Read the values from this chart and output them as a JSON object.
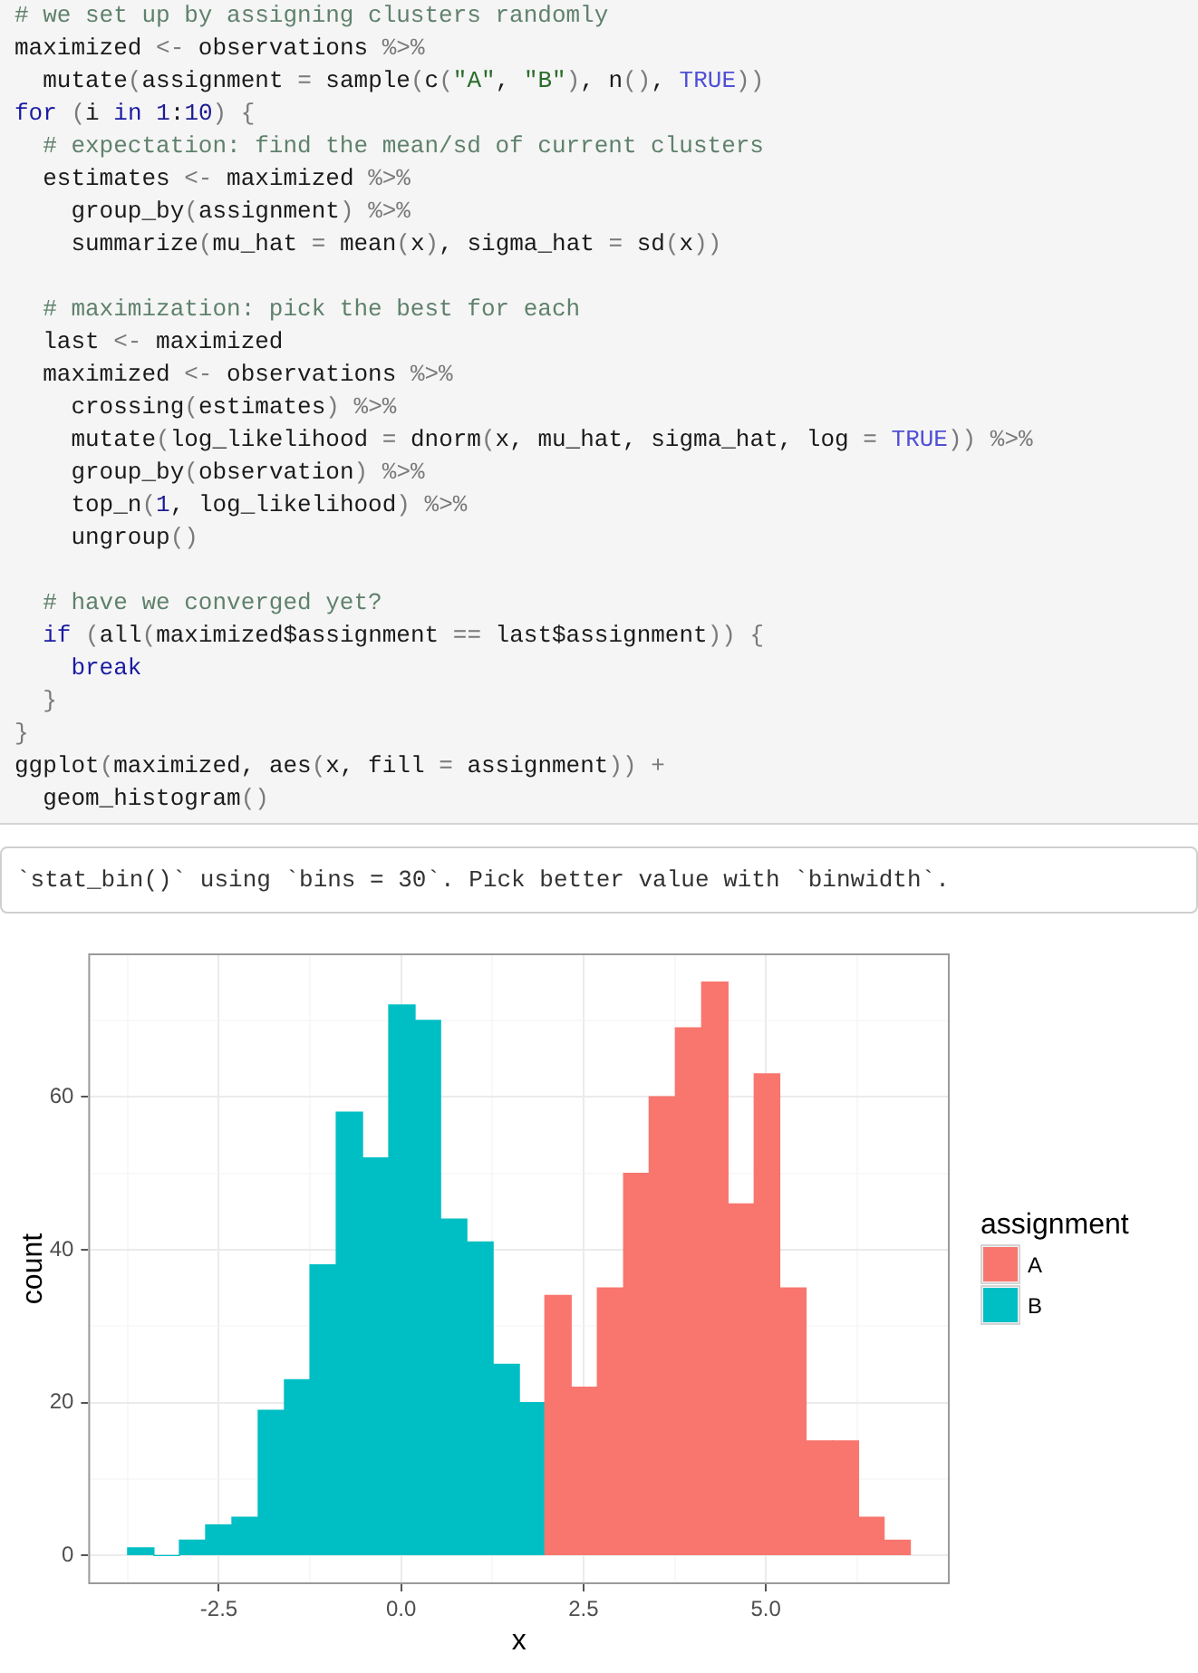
{
  "chart_data": {
    "type": "histogram",
    "xlabel": "x",
    "ylabel": "count",
    "legend_title": "assignment",
    "legend": "right",
    "grid": true,
    "annotations": [
      "# we set up by assigning clusters randomly\nmaximized <- observations %>%\n  mutate(assignment = sample(c(\"A\", \"B\"), n(), TRUE))\nfor (i in 1:10) {\n  # expectation: find the mean/sd of current clusters\n  estimates <- maximized %>%\n    group_by(assignment) %>%\n    summarize(mu_hat = mean(x), sigma_hat = sd(x))\n\n  # maximization: pick the best for each\n  last <- maximized\n  maximized <- observations %>%\n    crossing(estimates) %>%\n    mutate(log_likelihood = dnorm(x, mu_hat, sigma_hat, log = TRUE)) %>%\n    group_by(observation) %>%\n    top_n(1, log_likelihood) %>%\n    ungroup()\n\n  # have we converged yet?\n  if (all(maximized$assignment == last$assignment)) {\n    break\n  }\n}\nggplot(maximized, aes(x, fill = assignment)) +\n  geom_histogram()",
      "`stat_bin()` using `bins = 30`. Pick better value with `binwidth`."
    ],
    "bins": [
      -3.75,
      -3.39,
      -3.04,
      -2.68,
      -2.32,
      -1.96,
      -1.6,
      -1.25,
      -0.89,
      -0.53,
      -0.17,
      0.19,
      0.54,
      0.9,
      1.26,
      1.62,
      1.97,
      2.33,
      2.69,
      3.05,
      3.4,
      3.76,
      4.12,
      4.48,
      4.84,
      5.19,
      5.55,
      5.91,
      6.27,
      6.62,
      6.98
    ],
    "series": [
      {
        "name": "A",
        "color": "#f8766d",
        "values": [
          null,
          null,
          null,
          null,
          null,
          null,
          null,
          null,
          null,
          null,
          null,
          null,
          null,
          null,
          null,
          null,
          34,
          22,
          35,
          50,
          60,
          69,
          75,
          46,
          63,
          35,
          15,
          15,
          5,
          2
        ]
      },
      {
        "name": "B",
        "color": "#00bfc4",
        "values": [
          1,
          0,
          2,
          4,
          5,
          19,
          23,
          38,
          58,
          52,
          72,
          70,
          44,
          41,
          25,
          20,
          null,
          null,
          null,
          null,
          null,
          null,
          null,
          null,
          null,
          null,
          null,
          null,
          null,
          null
        ]
      }
    ],
    "xlim": [
      -4.29,
      7.52
    ],
    "xticks": [
      {
        "value": -3.75,
        "label": null
      },
      -2.5,
      {
        "value": -1.25,
        "label": null
      },
      {
        "value": 0,
        "label": "0.0"
      },
      {
        "value": 1.25,
        "label": null
      },
      2.5,
      {
        "value": 3.75,
        "label": null
      },
      {
        "value": 5,
        "label": "5.0"
      },
      {
        "value": 6.25,
        "label": null
      }
    ],
    "ylim": [
      -3.75,
      78.75
    ],
    "yticks": [
      0,
      {
        "value": 10,
        "label": null
      },
      20,
      {
        "value": 30,
        "label": null
      },
      40,
      {
        "value": 50,
        "label": null
      },
      60,
      {
        "value": 70,
        "label": null
      }
    ]
  }
}
